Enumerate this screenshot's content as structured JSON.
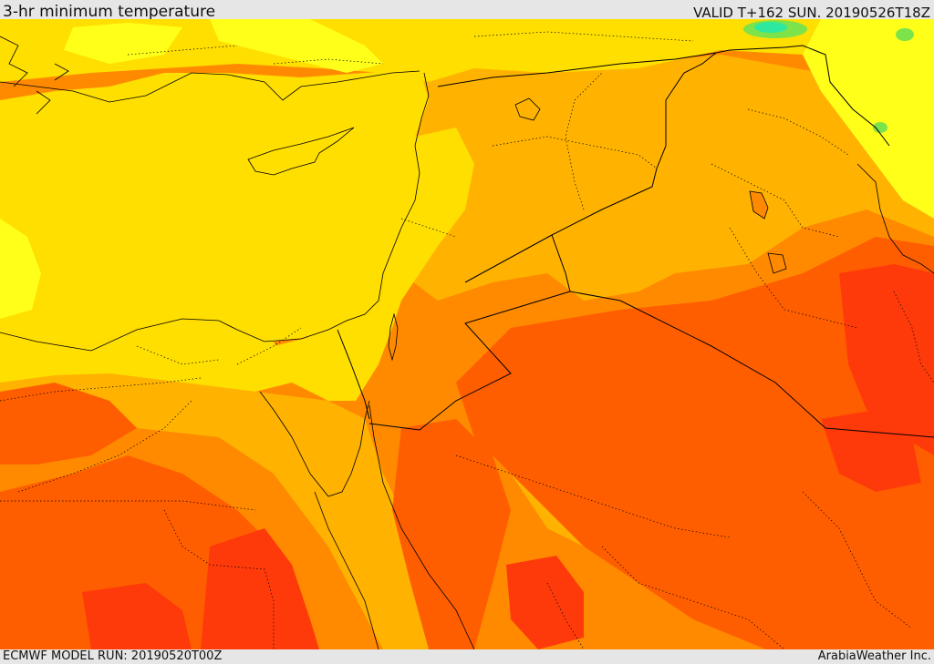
{
  "header": {
    "title": "3-hr minimum temperature",
    "valid_label": "VALID T+162 SUN. 20190526T18Z"
  },
  "footer": {
    "model_run": "ECMWF MODEL RUN: 20190520T00Z",
    "credit": "ArabiaWeather Inc."
  },
  "palette": {
    "yellow": "#ffdf00",
    "light_yellow": "#ffff1a",
    "amber": "#ffb300",
    "orange": "#ff8a00",
    "deep_orange": "#ff5e00",
    "red_orange": "#ff3a0a",
    "green": "#7ce34a",
    "cyan": "#2ee8a0",
    "border_color": "#000000"
  }
}
